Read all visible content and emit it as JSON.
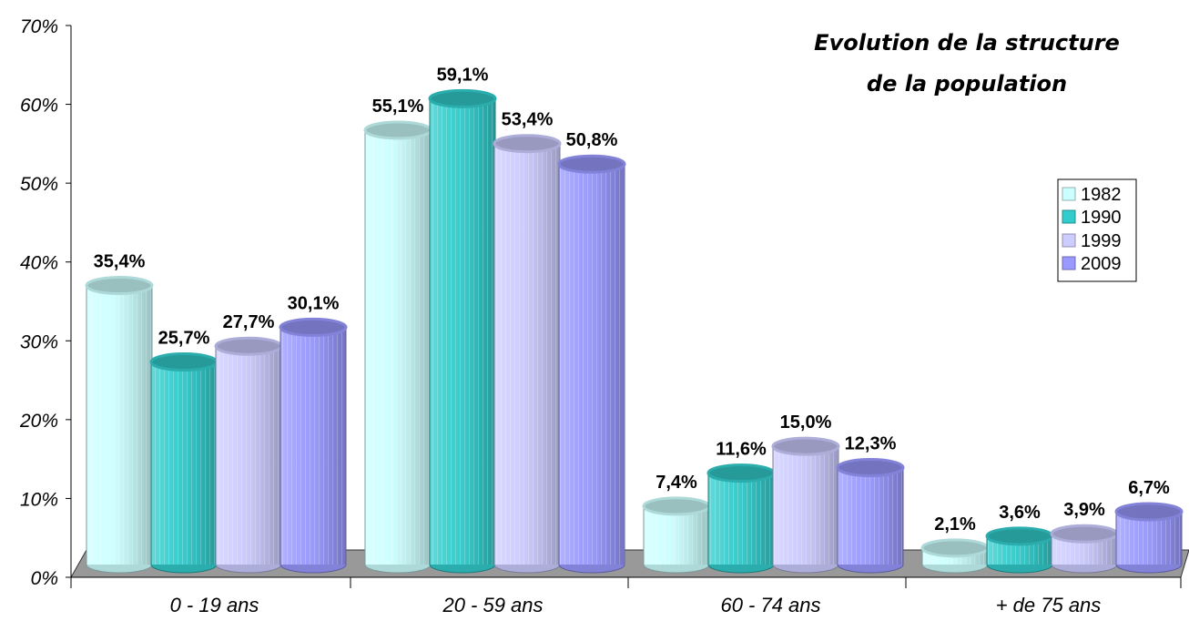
{
  "chart_data": {
    "type": "bar",
    "title_lines": [
      "Evolution de la structure",
      "de la population"
    ],
    "categories": [
      "0 - 19 ans",
      "20 - 59 ans",
      "60 - 74 ans",
      "+ de 75 ans"
    ],
    "series": [
      {
        "name": "1982",
        "color": "#ccffff",
        "values": [
          35.4,
          55.1,
          7.4,
          2.1
        ],
        "labels": [
          "35,4%",
          "55,1%",
          "7,4%",
          "2,1%"
        ]
      },
      {
        "name": "1990",
        "color": "#33cccc",
        "values": [
          25.7,
          59.1,
          11.6,
          3.6
        ],
        "labels": [
          "25,7%",
          "59,1%",
          "11,6%",
          "3,6%"
        ]
      },
      {
        "name": "1999",
        "color": "#ccccff",
        "values": [
          27.7,
          53.4,
          15.0,
          3.9
        ],
        "labels": [
          "27,7%",
          "53,4%",
          "15,0%",
          "3,9%"
        ]
      },
      {
        "name": "2009",
        "color": "#9999ff",
        "values": [
          30.1,
          50.8,
          12.3,
          6.7
        ],
        "labels": [
          "30,1%",
          "50,8%",
          "12,3%",
          "6,7%"
        ]
      }
    ],
    "y_ticks": [
      "0%",
      "10%",
      "20%",
      "30%",
      "40%",
      "50%",
      "60%",
      "70%"
    ],
    "ylim": [
      0,
      70
    ],
    "xlabel": "",
    "ylabel": "",
    "legend_position": "right",
    "grid": false
  }
}
